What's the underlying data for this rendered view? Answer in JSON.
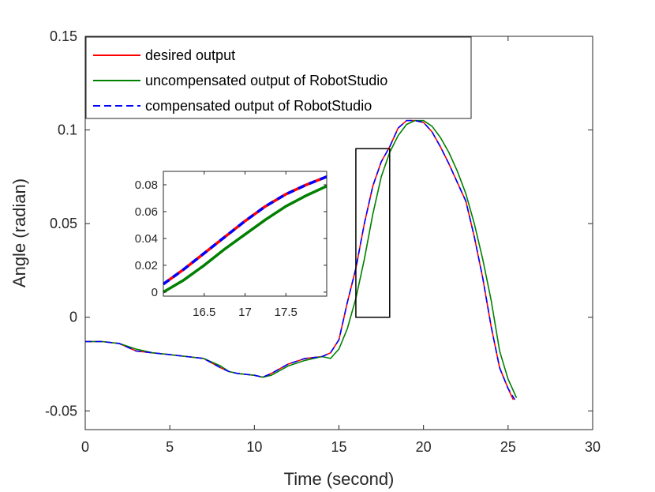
{
  "chart_data": [
    {
      "type": "line",
      "xlabel": "Time (second)",
      "ylabel": "Angle (radian)",
      "xlim": [
        0,
        30
      ],
      "ylim": [
        -0.06,
        0.15
      ],
      "xticks": [
        0,
        5,
        10,
        15,
        20,
        25,
        30
      ],
      "yticks": [
        -0.05,
        0,
        0.05,
        0.1,
        0.15
      ],
      "xtick_labels": [
        "0",
        "5",
        "10",
        "15",
        "20",
        "25",
        "30"
      ],
      "ytick_labels": [
        "-0.05",
        "0",
        "0.05",
        "0.1",
        "0.15"
      ],
      "grid": false,
      "legend_position": "top-left",
      "series": [
        {
          "name": "desired output",
          "color": "#ff0000",
          "style": "solid",
          "x": [
            0,
            1,
            2,
            3,
            4,
            5,
            6,
            7,
            8,
            8.5,
            9,
            10,
            10.5,
            11,
            12,
            13,
            14,
            14.5,
            15,
            15.5,
            16,
            16.5,
            17,
            17.5,
            18,
            18.5,
            19,
            19.5,
            20,
            20.5,
            21,
            21.5,
            22,
            22.5,
            23,
            23.5,
            24,
            24.5,
            25,
            25.3
          ],
          "y": [
            -0.013,
            -0.013,
            -0.014,
            -0.018,
            -0.019,
            -0.02,
            -0.021,
            -0.022,
            -0.027,
            -0.029,
            -0.03,
            -0.031,
            -0.032,
            -0.03,
            -0.025,
            -0.022,
            -0.021,
            -0.019,
            -0.012,
            0.008,
            0.026,
            0.05,
            0.07,
            0.083,
            0.091,
            0.101,
            0.105,
            0.105,
            0.104,
            0.099,
            0.091,
            0.082,
            0.072,
            0.062,
            0.043,
            0.021,
            -0.005,
            -0.027,
            -0.038,
            -0.044
          ]
        },
        {
          "name": "uncompensated output of RobotStudio",
          "color": "#008000",
          "style": "solid",
          "x": [
            0,
            1,
            2,
            3,
            4,
            5,
            6,
            7,
            8,
            8.5,
            9,
            10,
            10.5,
            11,
            12,
            13,
            14,
            14.5,
            15,
            15.5,
            16,
            16.5,
            17,
            17.5,
            18,
            18.5,
            19,
            19.5,
            20,
            20.5,
            21,
            21.5,
            22,
            22.5,
            23,
            23.5,
            24,
            24.5,
            25,
            25.5
          ],
          "y": [
            -0.013,
            -0.013,
            -0.014,
            -0.017,
            -0.019,
            -0.02,
            -0.021,
            -0.022,
            -0.026,
            -0.029,
            -0.03,
            -0.031,
            -0.032,
            -0.031,
            -0.026,
            -0.023,
            -0.021,
            -0.022,
            -0.017,
            -0.006,
            0.01,
            0.031,
            0.055,
            0.075,
            0.088,
            0.097,
            0.103,
            0.105,
            0.105,
            0.102,
            0.096,
            0.088,
            0.078,
            0.066,
            0.05,
            0.031,
            0.009,
            -0.018,
            -0.033,
            -0.043
          ]
        },
        {
          "name": "compensated output of RobotStudio",
          "color": "#0000ff",
          "style": "dashed",
          "x": [
            0,
            1,
            2,
            3,
            4,
            5,
            6,
            7,
            8,
            8.5,
            9,
            10,
            10.5,
            11,
            12,
            13,
            14,
            14.5,
            15,
            15.5,
            16,
            16.5,
            17,
            17.5,
            18,
            18.5,
            19,
            19.5,
            20,
            20.5,
            21,
            21.5,
            22,
            22.5,
            23,
            23.5,
            24,
            24.5,
            25,
            25.4
          ],
          "y": [
            -0.013,
            -0.013,
            -0.014,
            -0.018,
            -0.019,
            -0.02,
            -0.021,
            -0.022,
            -0.027,
            -0.029,
            -0.03,
            -0.031,
            -0.032,
            -0.03,
            -0.025,
            -0.022,
            -0.021,
            -0.019,
            -0.012,
            0.008,
            0.026,
            0.05,
            0.07,
            0.083,
            0.091,
            0.101,
            0.105,
            0.105,
            0.104,
            0.099,
            0.091,
            0.082,
            0.072,
            0.062,
            0.043,
            0.021,
            -0.005,
            -0.027,
            -0.038,
            -0.044
          ]
        }
      ]
    },
    {
      "type": "line",
      "xlim": [
        16,
        18
      ],
      "ylim": [
        -0.003,
        0.09
      ],
      "xticks": [
        16.5,
        17,
        17.5
      ],
      "yticks": [
        0,
        0.02,
        0.04,
        0.06,
        0.08
      ],
      "xtick_labels": [
        "16.5",
        "17",
        "17.5"
      ],
      "ytick_labels": [
        "0",
        "0.02",
        "0.04",
        "0.06",
        "0.08"
      ],
      "grid": false,
      "series": [
        {
          "name": "desired output",
          "color": "#ff0000",
          "style": "solid",
          "x": [
            16,
            16.25,
            16.5,
            16.75,
            17,
            17.25,
            17.5,
            17.75,
            18
          ],
          "y": [
            0.006,
            0.017,
            0.029,
            0.041,
            0.053,
            0.064,
            0.073,
            0.08,
            0.086
          ]
        },
        {
          "name": "uncompensated output of RobotStudio",
          "color": "#008000",
          "style": "solid",
          "x": [
            16,
            16.25,
            16.5,
            16.75,
            17,
            17.25,
            17.5,
            17.75,
            18
          ],
          "y": [
            0.0,
            0.009,
            0.02,
            0.032,
            0.043,
            0.054,
            0.064,
            0.072,
            0.079
          ]
        },
        {
          "name": "compensated output of RobotStudio",
          "color": "#0000ff",
          "style": "dashed",
          "x": [
            16,
            16.25,
            16.5,
            16.75,
            17,
            17.25,
            17.5,
            17.75,
            18
          ],
          "y": [
            0.006,
            0.017,
            0.029,
            0.041,
            0.053,
            0.064,
            0.073,
            0.08,
            0.086
          ]
        }
      ]
    }
  ],
  "zoom_box": {
    "x": [
      16,
      18
    ],
    "y": [
      0,
      0.09
    ]
  }
}
